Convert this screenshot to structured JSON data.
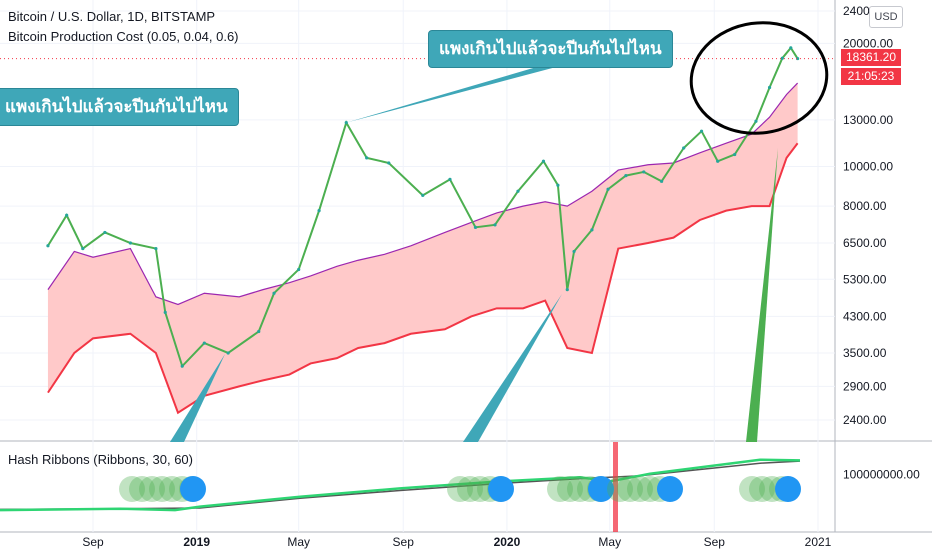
{
  "header": {
    "title": "Bitcoin / U.S. Dollar, 1D, BITSTAMP",
    "indicator": "Bitcoin Production Cost (0.05, 0.04, 0.6)",
    "sub_indicator": "Hash Ribbons (Ribbons, 30, 60)",
    "currency_button": "USD"
  },
  "annotations": {
    "callout_top": "แพงเกินไปแล้วจะปีนกันไปไหน",
    "callout_left": "แพงเกินไปแล้วจะปีนกันไปไหน"
  },
  "price_tags": {
    "last_price": "18361.20",
    "countdown": "21:05:23"
  },
  "colors": {
    "candle_up": "#26a69a",
    "price_line": "#4caf50",
    "cost_fill": "#ffc9c9",
    "cost_fill_dark": "#ff5252",
    "cost_upper": "#9c27b0",
    "cost_lower": "#f23645",
    "callout": "#3fa7b8",
    "ribbon_fast": "#2ed573",
    "ribbon_slow": "#555555",
    "signal_dot": "#2196f3",
    "hist_dot": "#4caf50"
  },
  "chart_data": {
    "type": "line",
    "price_axis": {
      "scale": "log",
      "ticks": [
        "24000.00",
        "20000.00",
        "13000.00",
        "10000.00",
        "8000.00",
        "6500.00",
        "5300.00",
        "4300.00",
        "3500.00",
        "2900.00",
        "2400.00"
      ]
    },
    "hash_axis": {
      "ticks": [
        "100000000.00"
      ]
    },
    "time_axis": {
      "ticks": [
        "Sep",
        "2019",
        "May",
        "Sep",
        "2020",
        "May",
        "Sep",
        "2021"
      ]
    },
    "series": [
      {
        "name": "",
        "x": [
          "2018-07-10",
          "2018-08-01",
          "2018-08-20",
          "2018-09-15",
          "2018-10-15",
          "2018-11-14",
          "2018-11-25",
          "2018-12-15",
          "2019-01-10",
          "2019-02-07",
          "2019-03-15",
          "2019-04-02",
          "2019-05-01",
          "2019-05-25",
          "2019-06-26",
          "2019-07-20",
          "2019-08-15",
          "2019-09-24",
          "2019-10-26",
          "2019-11-25",
          "2019-12-18",
          "2020-01-14",
          "2020-02-13",
          "2020-03-01",
          "2020-03-12",
          "2020-03-20",
          "2020-04-10",
          "2020-04-29",
          "2020-05-20",
          "2020-06-10",
          "2020-07-01",
          "2020-07-27",
          "2020-08-17",
          "2020-09-05",
          "2020-09-25",
          "2020-10-20",
          "2020-11-05",
          "2020-11-20",
          "2020-11-30",
          "2020-12-08"
        ],
        "y": [
          6400,
          7600,
          6300,
          6900,
          6500,
          6300,
          4400,
          3250,
          3700,
          3500,
          3950,
          4900,
          5600,
          7800,
          12800,
          10500,
          10200,
          8500,
          9300,
          7100,
          7200,
          8700,
          10300,
          9000,
          5000,
          6200,
          7000,
          8800,
          9500,
          9700,
          9200,
          11100,
          12200,
          10300,
          10700,
          12900,
          15600,
          18400,
          19500,
          18361
        ]
      },
      {
        "name": "",
        "x": [
          "2018-07-10",
          "2018-08-10",
          "2018-09-01",
          "2018-10-15",
          "2018-11-14",
          "2018-12-10",
          "2019-01-10",
          "2019-02-20",
          "2019-03-20",
          "2019-04-20",
          "2019-05-15",
          "2019-06-15",
          "2019-07-10",
          "2019-08-10",
          "2019-09-10",
          "2019-10-20",
          "2019-11-20",
          "2019-12-20",
          "2020-01-20",
          "2020-02-15",
          "2020-03-12",
          "2020-04-10",
          "2020-05-11",
          "2020-06-15",
          "2020-07-15",
          "2020-08-15",
          "2020-09-15",
          "2020-10-15",
          "2020-11-05",
          "2020-11-25",
          "2020-12-08"
        ],
        "y": [
          5000,
          6200,
          6000,
          6300,
          4800,
          4600,
          4900,
          4800,
          5000,
          5200,
          5400,
          5700,
          5900,
          6100,
          6400,
          6900,
          7300,
          7700,
          8000,
          8200,
          8000,
          8700,
          9800,
          10100,
          10200,
          10800,
          11400,
          12000,
          13200,
          15000,
          16000
        ]
      },
      {
        "name": "",
        "x": [
          "2018-07-10",
          "2018-08-10",
          "2018-09-01",
          "2018-10-15",
          "2018-11-14",
          "2018-12-10",
          "2019-01-10",
          "2019-02-20",
          "2019-03-20",
          "2019-04-20",
          "2019-05-15",
          "2019-06-15",
          "2019-07-10",
          "2019-08-10",
          "2019-09-10",
          "2019-10-20",
          "2019-11-20",
          "2019-12-20",
          "2020-01-20",
          "2020-02-15",
          "2020-03-12",
          "2020-04-10",
          "2020-05-11",
          "2020-06-15",
          "2020-07-15",
          "2020-08-15",
          "2020-09-15",
          "2020-10-15",
          "2020-11-05",
          "2020-11-25",
          "2020-12-08"
        ],
        "y": [
          2800,
          3500,
          3800,
          3900,
          3500,
          2500,
          2750,
          2900,
          3000,
          3100,
          3300,
          3400,
          3600,
          3700,
          3900,
          4000,
          4300,
          4500,
          4500,
          4700,
          3600,
          3500,
          6300,
          6500,
          6700,
          7400,
          7800,
          8000,
          8000,
          10500,
          11400
        ]
      }
    ]
  }
}
